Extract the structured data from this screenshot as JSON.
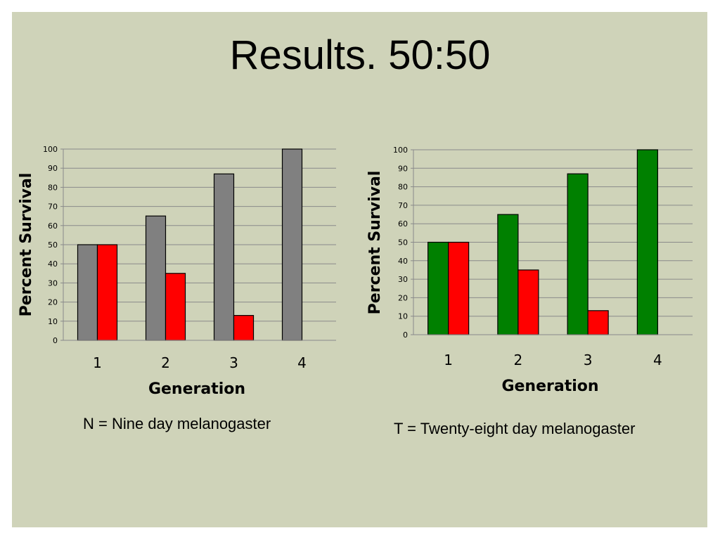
{
  "slide": {
    "title": "Results. 50:50",
    "background_color": "#cfd3b9"
  },
  "captions": [
    "N = Nine day melanogaster",
    "T = Twenty-eight day melanogaster"
  ],
  "chart_data": [
    {
      "type": "bar",
      "title": "",
      "xlabel": "Generation",
      "ylabel": "Percent Survival",
      "categories": [
        "1",
        "2",
        "3",
        "4"
      ],
      "ylim": [
        0,
        100
      ],
      "yticks": [
        "0",
        "10",
        "20",
        "30",
        "40",
        "50",
        "60",
        "70",
        "80",
        "90",
        "100"
      ],
      "grid": true,
      "series": [
        {
          "color": "#808080",
          "values": [
            50,
            65,
            87,
            100
          ]
        },
        {
          "color": "#ff0000",
          "values": [
            50,
            35,
            13,
            0
          ]
        }
      ]
    },
    {
      "type": "bar",
      "title": "",
      "xlabel": "Generation",
      "ylabel": "Percent Survival",
      "categories": [
        "1",
        "2",
        "3",
        "4"
      ],
      "ylim": [
        0,
        100
      ],
      "yticks": [
        "0",
        "10",
        "20",
        "30",
        "40",
        "50",
        "60",
        "70",
        "80",
        "90",
        "100"
      ],
      "grid": true,
      "series": [
        {
          "color": "#008000",
          "values": [
            50,
            65,
            87,
            100
          ]
        },
        {
          "color": "#ff0000",
          "values": [
            50,
            35,
            13,
            0
          ]
        }
      ]
    }
  ]
}
